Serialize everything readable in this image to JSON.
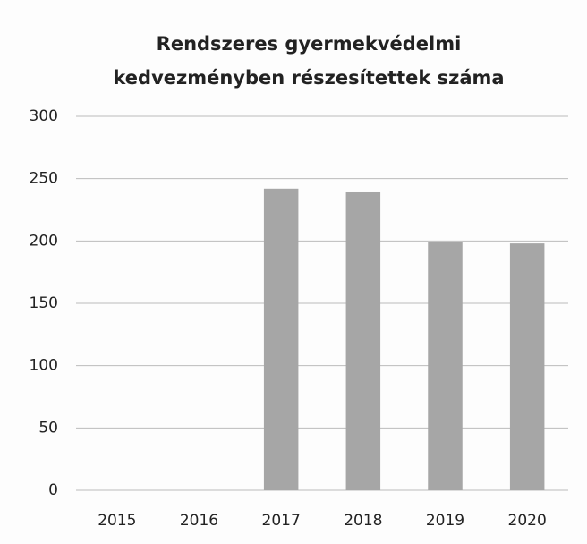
{
  "chart_data": {
    "type": "bar",
    "title": [
      "Rendszeres gyermekvédelmi",
      "kedvezményben részesítettek száma"
    ],
    "categories": [
      "2015",
      "2016",
      "2017",
      "2018",
      "2019",
      "2020"
    ],
    "values": [
      null,
      null,
      242,
      239,
      199,
      198
    ],
    "color": "#a6a6a6",
    "ylim": [
      0,
      300
    ],
    "yticks": [
      0,
      50,
      100,
      150,
      200,
      250,
      300
    ],
    "grid": true
  }
}
